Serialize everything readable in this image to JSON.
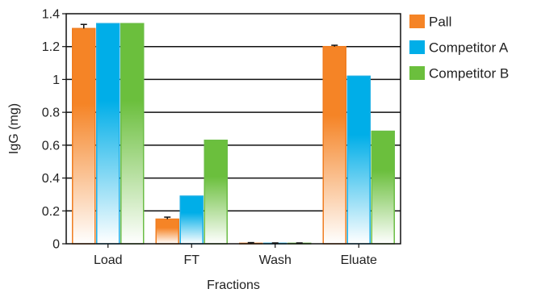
{
  "chart_data": {
    "type": "bar",
    "title": "",
    "xlabel": "Fractions",
    "ylabel": "IgG (mg)",
    "ylim": [
      0,
      1.4
    ],
    "yticks": [
      0,
      0.2,
      0.4,
      0.6,
      0.8,
      1,
      1.2,
      1.4
    ],
    "ytick_labels": [
      "0",
      "0.2",
      "0.4",
      "0.6",
      "0.8",
      "1",
      "1.2",
      "1.4"
    ],
    "grid": true,
    "legend_position": "right",
    "categories": [
      "Load",
      "FT",
      "Wash",
      "Eluate"
    ],
    "series": [
      {
        "name": "Pall",
        "values": [
          1.31,
          0.15,
          0.003,
          1.2
        ],
        "errors": [
          0.025,
          0.012,
          0.004,
          0.008
        ]
      },
      {
        "name": "Competitor A",
        "values": [
          1.34,
          0.29,
          0.003,
          1.02
        ],
        "errors": [
          null,
          null,
          0.002,
          null
        ]
      },
      {
        "name": "Competitor B",
        "values": [
          1.34,
          0.63,
          0.003,
          0.685
        ],
        "errors": [
          null,
          null,
          0.002,
          null
        ]
      }
    ],
    "colors": {
      "Pall": {
        "edge": "#f07d20",
        "top": "#f58426",
        "bottom": "#ffffff"
      },
      "Competitor A": {
        "edge": "#1aaee5",
        "top": "#00aee8",
        "bottom": "#ffffff"
      },
      "Competitor B": {
        "edge": "#6bbd45",
        "top": "#6bbf3d",
        "bottom": "#ffffff"
      }
    }
  }
}
